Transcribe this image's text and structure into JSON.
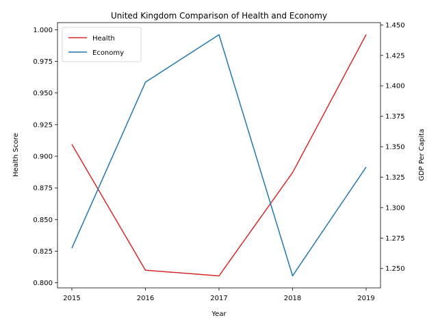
{
  "chart_data": {
    "type": "line",
    "title": "United Kingdom Comparison of Health and Economy",
    "xlabel": "Year",
    "ylabel": "Health Score",
    "ylabel_right": "GDP Per Capita",
    "x": [
      "2015",
      "2016",
      "2017",
      "2018",
      "2019"
    ],
    "series": [
      {
        "name": "Health",
        "axis": "left",
        "color": "#d62728",
        "values": [
          0.9094,
          0.81,
          0.8055,
          0.8871,
          0.9961
        ]
      },
      {
        "name": "Economy",
        "axis": "right",
        "color": "#1f77b4",
        "values": [
          1.2667,
          1.403,
          1.442,
          1.244,
          1.3333
        ]
      }
    ],
    "ylim_left": [
      0.796,
      1.0056
    ],
    "ylim_right": [
      1.2341,
      1.4519
    ],
    "yticks_left": [
      "0.800",
      "0.825",
      "0.850",
      "0.875",
      "0.900",
      "0.925",
      "0.950",
      "0.975",
      "1.000"
    ],
    "yticks_right": [
      "1.250",
      "1.275",
      "1.300",
      "1.325",
      "1.350",
      "1.375",
      "1.400",
      "1.425",
      "1.450"
    ],
    "grid": false,
    "legend_position": "upper left"
  }
}
